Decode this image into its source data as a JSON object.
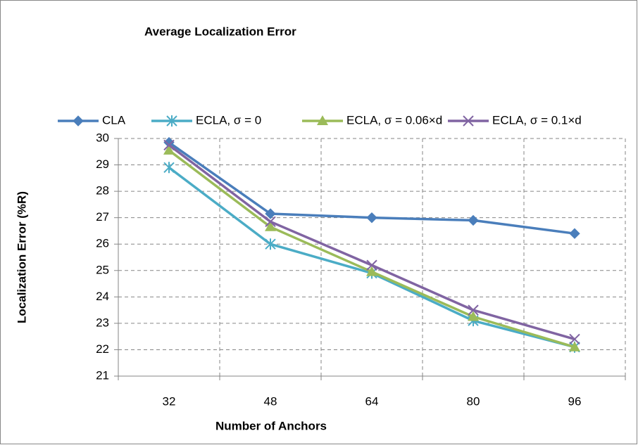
{
  "chart_data": {
    "type": "line",
    "title": "Average Localization Error",
    "x_label": "Number of Anchors",
    "y_label": "Localization Error (%R)",
    "categories": [
      "32",
      "48",
      "64",
      "80",
      "96"
    ],
    "series": [
      {
        "name": "CLA",
        "color": "#4a7ebb",
        "marker": "diamond",
        "values": [
          29.85,
          27.15,
          27.0,
          26.9,
          26.4
        ]
      },
      {
        "name": "ECLA, σ = 0",
        "color": "#4bacc6",
        "marker": "asterisk",
        "values": [
          28.9,
          26.0,
          24.9,
          23.1,
          22.1
        ]
      },
      {
        "name": "ECLA, σ = 0.06×d",
        "color": "#9bbb59",
        "marker": "triangle",
        "values": [
          29.55,
          26.65,
          24.95,
          23.25,
          22.1
        ]
      },
      {
        "name": "ECLA, σ = 0.1×d",
        "color": "#8064a2",
        "marker": "x",
        "values": [
          29.75,
          26.85,
          25.2,
          23.5,
          22.4
        ]
      }
    ],
    "ylim": [
      21,
      30
    ],
    "yticks": [
      21,
      22,
      23,
      24,
      25,
      26,
      27,
      28,
      29,
      30
    ],
    "grid": true,
    "legend": "top"
  }
}
